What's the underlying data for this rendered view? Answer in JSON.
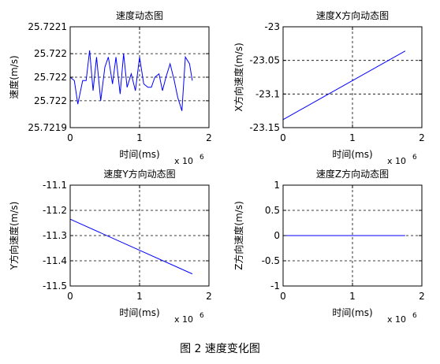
{
  "caption": "图 2 速度变化图",
  "chart_data": [
    {
      "type": "line",
      "title": "速度动态图",
      "xlabel": "时间(ms)",
      "ylabel": "速度(m/s)",
      "x_exponent_label": "x 10",
      "x_exponent": "6",
      "xlim": [
        0,
        2000000
      ],
      "ylim": [
        25.72185,
        25.72215
      ],
      "xticks": [
        0,
        1000000,
        2000000
      ],
      "xtick_labels": [
        "0",
        "1",
        "2"
      ],
      "yticks": [
        25.72185,
        25.72193,
        25.722,
        25.72207,
        25.72215
      ],
      "ytick_labels": [
        "25.7219",
        "25.722",
        "25.722",
        "25.722",
        "25.7221"
      ],
      "grid": true,
      "series": [
        {
          "color": "#0000ff",
          "x": [
            0,
            60000,
            110000,
            180000,
            230000,
            280000,
            330000,
            380000,
            440000,
            500000,
            550000,
            610000,
            660000,
            720000,
            770000,
            820000,
            880000,
            940000,
            1000000,
            1060000,
            1120000,
            1170000,
            1220000,
            1280000,
            1330000,
            1380000,
            1440000,
            1500000,
            1550000,
            1610000,
            1660000,
            1720000,
            1760000
          ],
          "y": [
            25.722,
            25.72199,
            25.72192,
            25.72199,
            25.72199,
            25.72208,
            25.72196,
            25.72206,
            25.72193,
            25.72203,
            25.72206,
            25.72198,
            25.72206,
            25.72195,
            25.72207,
            25.72197,
            25.72201,
            25.72196,
            25.72206,
            25.72198,
            25.72197,
            25.72197,
            25.722,
            25.72201,
            25.72196,
            25.722,
            25.72204,
            25.72199,
            25.72194,
            25.7219,
            25.72206,
            25.72204,
            25.72199
          ]
        }
      ]
    },
    {
      "type": "line",
      "title": "速度X方向动态图",
      "xlabel": "时间(ms)",
      "ylabel": "X方向速度(m/s)",
      "x_exponent_label": "x 10",
      "x_exponent": "6",
      "xlim": [
        0,
        2000000
      ],
      "ylim": [
        -23.15,
        -23.0
      ],
      "xticks": [
        0,
        1000000,
        2000000
      ],
      "xtick_labels": [
        "0",
        "1",
        "2"
      ],
      "yticks": [
        -23.15,
        -23.1,
        -23.05,
        -23.0
      ],
      "ytick_labels": [
        "-23.15",
        "-23.1",
        "-23.05",
        "-23"
      ],
      "grid": true,
      "series": [
        {
          "color": "#0000ff",
          "x": [
            0,
            1760000
          ],
          "y": [
            -23.138,
            -23.036
          ]
        }
      ]
    },
    {
      "type": "line",
      "title": "速度Y方向动态图",
      "xlabel": "时间(ms)",
      "ylabel": "Y方向速度(m/s)",
      "x_exponent_label": "x 10",
      "x_exponent": "6",
      "xlim": [
        0,
        2000000
      ],
      "ylim": [
        -11.5,
        -11.1
      ],
      "xticks": [
        0,
        1000000,
        2000000
      ],
      "xtick_labels": [
        "0",
        "1",
        "2"
      ],
      "yticks": [
        -11.5,
        -11.4,
        -11.3,
        -11.2,
        -11.1
      ],
      "ytick_labels": [
        "-11.5",
        "-11.4",
        "-11.3",
        "-11.2",
        "-11.1"
      ],
      "grid": true,
      "series": [
        {
          "color": "#0000ff",
          "x": [
            0,
            1760000
          ],
          "y": [
            -11.235,
            -11.452
          ]
        }
      ]
    },
    {
      "type": "line",
      "title": "速度Z方向动态图",
      "xlabel": "时间(ms)",
      "ylabel": "Z方向速度(m/s)",
      "x_exponent_label": "x 10",
      "x_exponent": "6",
      "xlim": [
        0,
        2000000
      ],
      "ylim": [
        -1,
        1
      ],
      "xticks": [
        0,
        1000000,
        2000000
      ],
      "xtick_labels": [
        "0",
        "1",
        "2"
      ],
      "yticks": [
        -1,
        -0.5,
        0,
        0.5,
        1
      ],
      "ytick_labels": [
        "-1",
        "-0.5",
        "0",
        "0.5",
        "1"
      ],
      "grid": true,
      "series": [
        {
          "color": "#0000ff",
          "x": [
            0,
            1760000
          ],
          "y": [
            0,
            0
          ]
        }
      ]
    }
  ]
}
